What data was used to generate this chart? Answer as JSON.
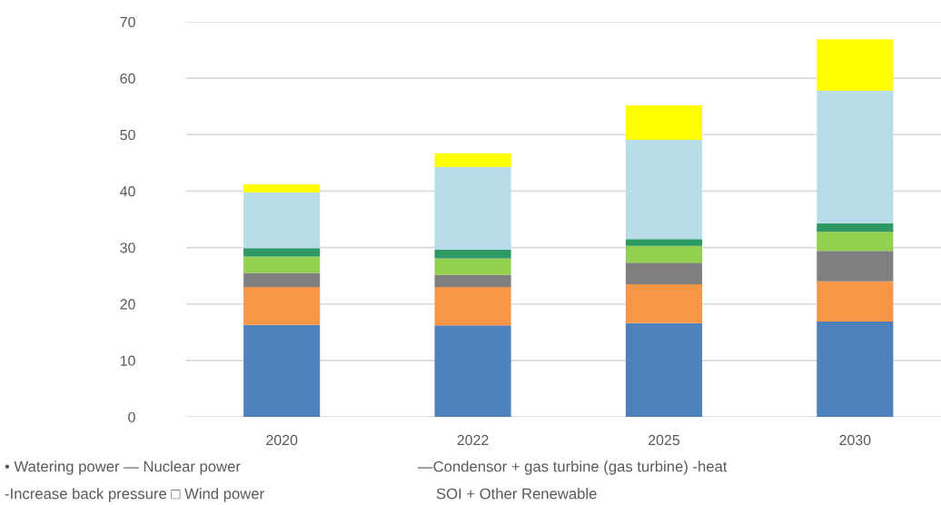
{
  "chart_data": {
    "type": "bar",
    "stacked": true,
    "categories": [
      "2020",
      "2022",
      "2025",
      "2030"
    ],
    "series": [
      {
        "color": "#4f81bd",
        "values": [
          16.3,
          16.2,
          16.6,
          16.9
        ]
      },
      {
        "color": "#f79646",
        "values": [
          6.7,
          6.8,
          6.9,
          7.1
        ]
      },
      {
        "color": "#7f7f7f",
        "values": [
          2.5,
          2.2,
          3.8,
          5.4
        ]
      },
      {
        "color": "#92d050",
        "values": [
          2.9,
          2.9,
          3.0,
          3.4
        ]
      },
      {
        "color": "#2e9963",
        "values": [
          1.5,
          1.5,
          1.2,
          1.5
        ]
      },
      {
        "color": "#b7dde8",
        "values": [
          9.9,
          14.7,
          17.6,
          23.5
        ]
      },
      {
        "color": "#ffff00",
        "values": [
          1.4,
          2.4,
          6.1,
          9.1
        ]
      }
    ],
    "ylim": [
      0,
      70
    ],
    "yticks": [
      0,
      10,
      20,
      30,
      40,
      50,
      60,
      70
    ],
    "grid": "y",
    "legend": false,
    "annotations": [
      "• Watering power — Nuclear power",
      "—Condensor + gas turbine (gas turbine) -heat",
      "-Increase back pressure □ Wind power",
      "SOI + Other Renewable"
    ]
  }
}
